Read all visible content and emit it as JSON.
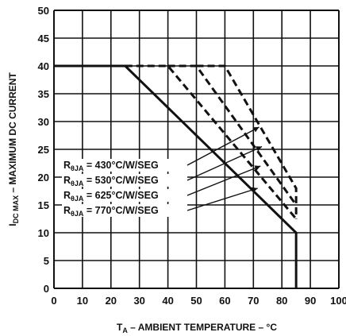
{
  "chart_data": {
    "type": "line",
    "xlabel_main": "T",
    "xlabel_sub": "A",
    "xlabel_rest": " – AMBIENT TEMPERATURE – °C",
    "ylabel_main": "I",
    "ylabel_sub": "DC MAX",
    "ylabel_rest": "  – MAXIMUM DC CURRENT",
    "xlim": [
      0,
      100
    ],
    "ylim": [
      0,
      50
    ],
    "x_ticks": [
      "0",
      "10",
      "20",
      "30",
      "40",
      "50",
      "60",
      "70",
      "80",
      "90",
      "100"
    ],
    "y_ticks": [
      "0",
      "5",
      "10",
      "15",
      "20",
      "25",
      "30",
      "35",
      "40",
      "45",
      "50"
    ],
    "grid": true,
    "series": [
      {
        "style": "solid",
        "x": [
          0,
          25,
          85,
          85
        ],
        "y": [
          40,
          40,
          10,
          0
        ]
      },
      {
        "style": "dashed",
        "x": [
          25,
          40,
          85
        ],
        "y": [
          40,
          40,
          12.5
        ]
      },
      {
        "style": "dashed",
        "x": [
          40,
          50,
          85
        ],
        "y": [
          40,
          40,
          15
        ]
      },
      {
        "style": "dashed",
        "x": [
          50,
          60,
          85,
          85
        ],
        "y": [
          40,
          40,
          18,
          12.5
        ]
      }
    ],
    "annotations": [
      {
        "sym": "R",
        "sub": "θJA",
        "text": " = 430°C/W/SEG",
        "target": [
          72,
          29
        ]
      },
      {
        "sym": "R",
        "sub": "θJA",
        "text": " = 530°C/W/SEG",
        "target": [
          73,
          25.5
        ]
      },
      {
        "sym": "R",
        "sub": "θJA",
        "text": " = 625°C/W/SEG",
        "target": [
          72.5,
          22
        ]
      },
      {
        "sym": "R",
        "sub": "θJA",
        "text": " = 770°C/W/SEG",
        "target": [
          71.5,
          18
        ]
      }
    ]
  }
}
